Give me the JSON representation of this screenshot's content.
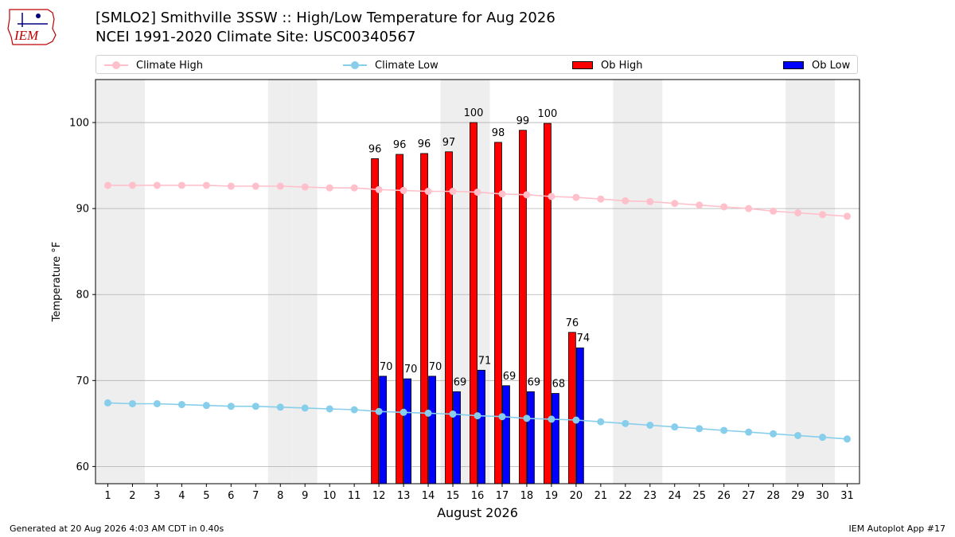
{
  "header": {
    "logo_text": "IEM",
    "title_line1": "[SMLO2] Smithville 3SSW :: High/Low Temperature for Aug 2026",
    "title_line2": "NCEI 1991-2020 Climate Site: USC00340567"
  },
  "legend": {
    "placement": "top",
    "climate_high": "Climate High",
    "climate_low": "Climate Low",
    "ob_high": "Ob High",
    "ob_low": "Ob Low"
  },
  "colors": {
    "climate_high": "#ffc0cb",
    "climate_low": "#87ceeb",
    "ob_high": "#ff0000",
    "ob_low": "#0000ff",
    "weekend_band": "#eeeeee",
    "grid": "#b0b0b0"
  },
  "chart_data": {
    "type": "bar",
    "xlabel": "August 2026",
    "ylabel": "Temperature °F",
    "xlim": [
      0.5,
      31.5
    ],
    "ylim": [
      58,
      105
    ],
    "yticks": [
      60,
      70,
      80,
      90,
      100
    ],
    "grid": "horizontal",
    "weekend_days": [
      1,
      2,
      8,
      9,
      15,
      16,
      22,
      23,
      29,
      30
    ],
    "days": [
      1,
      2,
      3,
      4,
      5,
      6,
      7,
      8,
      9,
      10,
      11,
      12,
      13,
      14,
      15,
      16,
      17,
      18,
      19,
      20,
      21,
      22,
      23,
      24,
      25,
      26,
      27,
      28,
      29,
      30,
      31
    ],
    "series": [
      {
        "name": "Climate High",
        "kind": "line",
        "x": [
          1,
          2,
          3,
          4,
          5,
          6,
          7,
          8,
          9,
          10,
          11,
          12,
          13,
          14,
          15,
          16,
          17,
          18,
          19,
          20,
          21,
          22,
          23,
          24,
          25,
          26,
          27,
          28,
          29,
          30,
          31
        ],
        "values": [
          92.7,
          92.7,
          92.7,
          92.7,
          92.7,
          92.6,
          92.6,
          92.6,
          92.5,
          92.4,
          92.4,
          92.2,
          92.1,
          92.0,
          92.0,
          91.9,
          91.7,
          91.6,
          91.4,
          91.3,
          91.1,
          90.9,
          90.8,
          90.6,
          90.4,
          90.2,
          90.0,
          89.7,
          89.5,
          89.3,
          89.1
        ]
      },
      {
        "name": "Climate Low",
        "kind": "line",
        "x": [
          1,
          2,
          3,
          4,
          5,
          6,
          7,
          8,
          9,
          10,
          11,
          12,
          13,
          14,
          15,
          16,
          17,
          18,
          19,
          20,
          21,
          22,
          23,
          24,
          25,
          26,
          27,
          28,
          29,
          30,
          31
        ],
        "values": [
          67.4,
          67.3,
          67.3,
          67.2,
          67.1,
          67.0,
          67.0,
          66.9,
          66.8,
          66.7,
          66.6,
          66.4,
          66.3,
          66.2,
          66.1,
          65.9,
          65.8,
          65.6,
          65.5,
          65.4,
          65.2,
          65.0,
          64.8,
          64.6,
          64.4,
          64.2,
          64.0,
          63.8,
          63.6,
          63.4,
          63.2
        ]
      },
      {
        "name": "Ob High",
        "kind": "bar",
        "x": [
          12,
          13,
          14,
          15,
          16,
          17,
          18,
          19,
          20
        ],
        "values": [
          95.8,
          96.3,
          96.4,
          96.6,
          100.0,
          97.7,
          99.1,
          99.9,
          75.6
        ],
        "labels": [
          "96",
          "96",
          "96",
          "97",
          "100",
          "98",
          "99",
          "100",
          "76"
        ]
      },
      {
        "name": "Ob Low",
        "kind": "bar",
        "x": [
          12,
          13,
          14,
          15,
          16,
          17,
          18,
          19,
          20
        ],
        "values": [
          70.5,
          70.2,
          70.5,
          68.7,
          71.2,
          69.4,
          68.7,
          68.5,
          73.8
        ],
        "labels": [
          "70",
          "70",
          "70",
          "69",
          "71",
          "69",
          "69",
          "68",
          "74"
        ]
      }
    ]
  },
  "footer": {
    "left": "Generated at 20 Aug 2026 4:03 AM CDT in 0.40s",
    "right": "IEM Autoplot App #17"
  }
}
